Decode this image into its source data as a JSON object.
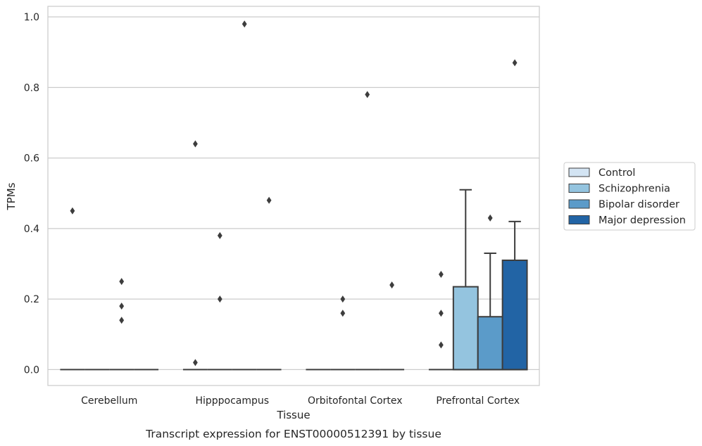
{
  "chart_data": {
    "type": "box",
    "title": "",
    "caption": "Transcript expression for ENST00000512391 by tissue",
    "xlabel": "Tissue",
    "ylabel": "TPMs",
    "ylim": [
      -0.045,
      1.03
    ],
    "yticks": [
      0.0,
      0.2,
      0.4,
      0.6,
      0.8,
      1.0
    ],
    "ytick_labels": [
      "0.0",
      "0.2",
      "0.4",
      "0.6",
      "0.8",
      "1.0"
    ],
    "grid": "horizontal",
    "legend_position": "right",
    "categories": [
      "Cerebellum",
      "Hipppocampus",
      "Orbitofontal Cortex",
      "Prefrontal Cortex"
    ],
    "series": [
      {
        "name": "Control",
        "color": "#d3e4f3",
        "boxes": [
          {
            "q1": 0,
            "median": 0,
            "q3": 0,
            "whisker_low": 0,
            "whisker_high": 0,
            "outliers": [
              0.45
            ]
          },
          {
            "q1": 0,
            "median": 0,
            "q3": 0,
            "whisker_low": 0,
            "whisker_high": 0,
            "outliers": [
              0.64,
              0.02
            ]
          },
          {
            "q1": 0,
            "median": 0,
            "q3": 0,
            "whisker_low": 0,
            "whisker_high": 0,
            "outliers": []
          },
          {
            "q1": 0,
            "median": 0,
            "q3": 0,
            "whisker_low": 0,
            "whisker_high": 0,
            "outliers": [
              0.27,
              0.16,
              0.07
            ]
          }
        ]
      },
      {
        "name": "Schizophrenia",
        "color": "#94c4df",
        "boxes": [
          {
            "q1": 0,
            "median": 0,
            "q3": 0,
            "whisker_low": 0,
            "whisker_high": 0,
            "outliers": []
          },
          {
            "q1": 0,
            "median": 0,
            "q3": 0,
            "whisker_low": 0,
            "whisker_high": 0,
            "outliers": [
              0.38,
              0.2
            ]
          },
          {
            "q1": 0,
            "median": 0,
            "q3": 0,
            "whisker_low": 0,
            "whisker_high": 0,
            "outliers": [
              0.2,
              0.16
            ]
          },
          {
            "q1": 0,
            "median": 0,
            "q3": 0.235,
            "whisker_low": 0,
            "whisker_high": 0.51,
            "outliers": []
          }
        ]
      },
      {
        "name": "Bipolar disorder",
        "color": "#5b9bc9",
        "boxes": [
          {
            "q1": 0,
            "median": 0,
            "q3": 0,
            "whisker_low": 0,
            "whisker_high": 0,
            "outliers": [
              0.25,
              0.18,
              0.14
            ]
          },
          {
            "q1": 0,
            "median": 0,
            "q3": 0,
            "whisker_low": 0,
            "whisker_high": 0,
            "outliers": [
              0.98
            ]
          },
          {
            "q1": 0,
            "median": 0,
            "q3": 0,
            "whisker_low": 0,
            "whisker_high": 0,
            "outliers": [
              0.78
            ]
          },
          {
            "q1": 0,
            "median": 0,
            "q3": 0.15,
            "whisker_low": 0,
            "whisker_high": 0.33,
            "outliers": [
              0.43
            ]
          }
        ]
      },
      {
        "name": "Major depression",
        "color": "#2264a5",
        "boxes": [
          {
            "q1": 0,
            "median": 0,
            "q3": 0,
            "whisker_low": 0,
            "whisker_high": 0,
            "outliers": []
          },
          {
            "q1": 0,
            "median": 0,
            "q3": 0,
            "whisker_low": 0,
            "whisker_high": 0,
            "outliers": [
              0.48
            ]
          },
          {
            "q1": 0,
            "median": 0,
            "q3": 0,
            "whisker_low": 0,
            "whisker_high": 0,
            "outliers": [
              0.24
            ]
          },
          {
            "q1": 0,
            "median": 0,
            "q3": 0.31,
            "whisker_low": 0,
            "whisker_high": 0.42,
            "outliers": [
              0.87
            ]
          }
        ]
      }
    ]
  }
}
